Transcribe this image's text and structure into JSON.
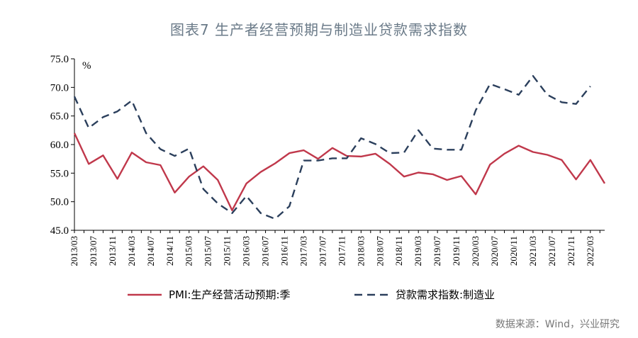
{
  "title": "图表7 生产者经营预期与制造业贷款需求指数",
  "source": "数据来源：Wind，兴业研究",
  "chart_data": {
    "type": "line",
    "unit": "%",
    "ylim": [
      45,
      75
    ],
    "yticks": [
      "45.0",
      "50.0",
      "55.0",
      "60.0",
      "65.0",
      "70.0",
      "75.0"
    ],
    "x": [
      "2013/03",
      "2013/05",
      "2013/07",
      "2013/09",
      "2013/11",
      "2014/01",
      "2014/03",
      "2014/05",
      "2014/07",
      "2014/09",
      "2014/11",
      "2015/01",
      "2015/03",
      "2015/05",
      "2015/07",
      "2015/09",
      "2015/11",
      "2016/01",
      "2016/03",
      "2016/05",
      "2016/07",
      "2016/09",
      "2016/11",
      "2017/01",
      "2017/03",
      "2017/05",
      "2017/07",
      "2017/09",
      "2017/11",
      "2018/01",
      "2018/03",
      "2018/05",
      "2018/07",
      "2018/09",
      "2018/11",
      "2019/01",
      "2019/03",
      "2019/05",
      "2019/07",
      "2019/09",
      "2019/11",
      "2020/01",
      "2020/03",
      "2020/05",
      "2020/07",
      "2020/09",
      "2020/11",
      "2021/01",
      "2021/03",
      "2021/05",
      "2021/07",
      "2021/09",
      "2021/11",
      "2022/01",
      "2022/03",
      "2022/05"
    ],
    "xtick_labels": [
      "2013/03",
      "2013/07",
      "2013/11",
      "2014/03",
      "2014/07",
      "2014/11",
      "2015/03",
      "2015/07",
      "2015/11",
      "2016/03",
      "2016/07",
      "2016/11",
      "2017/03",
      "2017/07",
      "2017/11",
      "2018/03",
      "2018/07",
      "2018/11",
      "2019/03",
      "2019/07",
      "2019/11",
      "2020/03",
      "2020/07",
      "2020/11",
      "2021/03",
      "2021/07",
      "2021/11",
      "2022/03"
    ],
    "series": [
      {
        "name": "PMI:生产经营活动预期:季",
        "color": "#c0384b",
        "style": "solid",
        "x": [
          "2013/03",
          "2013/06",
          "2013/09",
          "2013/12",
          "2014/03",
          "2014/06",
          "2014/09",
          "2014/12",
          "2015/03",
          "2015/06",
          "2015/09",
          "2015/12",
          "2016/03",
          "2016/06",
          "2016/09",
          "2016/12",
          "2017/03",
          "2017/06",
          "2017/09",
          "2017/12",
          "2018/03",
          "2018/06",
          "2018/09",
          "2018/12",
          "2019/03",
          "2019/06",
          "2019/09",
          "2019/12",
          "2020/03",
          "2020/06",
          "2020/09",
          "2020/12",
          "2021/03",
          "2021/06",
          "2021/09",
          "2021/12",
          "2022/03",
          "2022/06"
        ],
        "values": [
          62.0,
          56.6,
          58.1,
          54.0,
          58.6,
          56.9,
          56.4,
          51.6,
          54.4,
          56.2,
          53.8,
          48.5,
          53.2,
          55.2,
          56.7,
          58.5,
          59.0,
          57.5,
          59.4,
          58.0,
          57.9,
          58.4,
          56.6,
          54.4,
          55.1,
          54.8,
          53.8,
          54.5,
          51.3,
          56.5,
          58.4,
          59.8,
          58.7,
          58.2,
          57.3,
          53.9,
          57.3,
          53.2
        ]
      },
      {
        "name": "贷款需求指数:制造业",
        "color": "#2b3f5c",
        "style": "dashed",
        "x": [
          "2013/03",
          "2013/06",
          "2013/09",
          "2013/12",
          "2014/03",
          "2014/06",
          "2014/09",
          "2014/12",
          "2015/03",
          "2015/06",
          "2015/09",
          "2015/12",
          "2016/03",
          "2016/06",
          "2016/09",
          "2016/12",
          "2017/03",
          "2017/06",
          "2017/09",
          "2017/12",
          "2018/03",
          "2018/06",
          "2018/09",
          "2018/12",
          "2019/03",
          "2019/06",
          "2019/09",
          "2019/12",
          "2020/03",
          "2020/06",
          "2020/09",
          "2020/12",
          "2021/03",
          "2021/06",
          "2021/09",
          "2021/12",
          "2022/03"
        ],
        "values": [
          68.4,
          62.9,
          64.8,
          65.8,
          67.7,
          62.0,
          59.2,
          58.0,
          59.3,
          52.2,
          49.7,
          48.0,
          51.0,
          48.0,
          47.0,
          49.2,
          57.2,
          57.2,
          57.6,
          57.6,
          61.1,
          60.1,
          58.5,
          58.6,
          62.5,
          59.3,
          59.1,
          59.1,
          66.0,
          70.6,
          69.7,
          68.7,
          72.0,
          68.7,
          67.4,
          67.1,
          70.2
        ]
      }
    ],
    "legend": "bottom",
    "grid": false
  }
}
